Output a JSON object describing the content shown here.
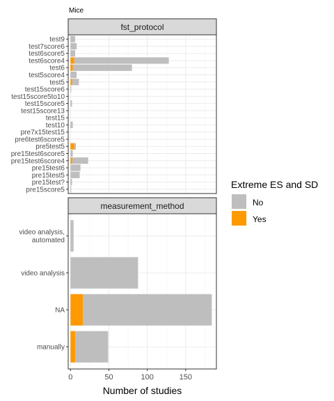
{
  "chart_data": {
    "type": "bar",
    "orientation": "horizontal",
    "stacked": true,
    "title": "Mice",
    "xlabel": "Number of studies",
    "xlim": [
      -3,
      190
    ],
    "x_ticks": [
      0,
      50,
      100,
      150
    ],
    "grid": true,
    "legend": {
      "title": "Extreme ES and SD",
      "position": "right",
      "entries": [
        {
          "name": "No",
          "color": "#bebebe"
        },
        {
          "name": "Yes",
          "color": "#ff9900"
        }
      ]
    },
    "panels": [
      {
        "strip": "fst_protocol",
        "categories": [
          "test9",
          "test7score6",
          "test6score5",
          "test6score4",
          "test6",
          "test5score4",
          "test5",
          "test15score6",
          "test15score5to10",
          "test15score5",
          "test15score13",
          "test15",
          "test10",
          "pre7x15test15",
          "pre6test6score5",
          "pre5test5",
          "pre15test6score5",
          "pre15test6score4",
          "pre15test6",
          "pre15test5",
          "pre15test?",
          "pre15score5"
        ],
        "series": [
          {
            "name": "Yes",
            "color": "#ff9900",
            "values": [
              0,
              0,
              0,
              5,
              3,
              0,
              2,
              0,
              0,
              0,
              0,
              0,
              0,
              0,
              0,
              5,
              0,
              2,
              0,
              0,
              0,
              0
            ]
          },
          {
            "name": "No",
            "color": "#bebebe",
            "values": [
              6,
              8,
              6,
              123,
              77,
              8,
              9,
              1,
              0,
              2,
              0,
              0,
              3,
              0,
              0,
              2,
              3,
              21,
              13,
              12,
              2,
              1
            ]
          }
        ]
      },
      {
        "strip": "measurement_method",
        "categories": [
          "video analysis,\nautomated",
          "video analysis",
          "NA",
          "manually"
        ],
        "series": [
          {
            "name": "Yes",
            "color": "#ff9900",
            "values": [
              0,
              0,
              16,
              6
            ]
          },
          {
            "name": "No",
            "color": "#bebebe",
            "values": [
              4,
              88,
              168,
              43
            ]
          }
        ]
      }
    ]
  }
}
